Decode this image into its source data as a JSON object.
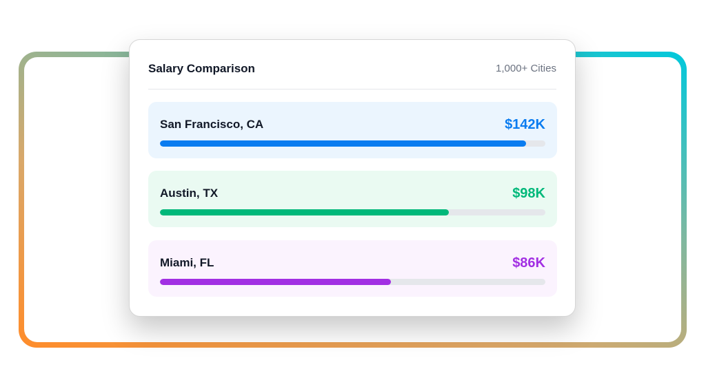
{
  "frame": {
    "gradient_colors": [
      "#00c8dc",
      "#ff8c2a"
    ]
  },
  "card": {
    "title": "Salary Comparison",
    "subtitle": "1,000+ Cities",
    "rows": [
      {
        "city": "San Francisco, CA",
        "value": "$142K",
        "progress": 0.95,
        "color": "#0a7cf0",
        "bg": "#ebf5fe"
      },
      {
        "city": "Austin, TX",
        "value": "$98K",
        "progress": 0.75,
        "color": "#00b87a",
        "bg": "#eafaf2"
      },
      {
        "city": "Miami, FL",
        "value": "$86K",
        "progress": 0.6,
        "color": "#a22fe3",
        "bg": "#fbf3fe"
      }
    ]
  }
}
